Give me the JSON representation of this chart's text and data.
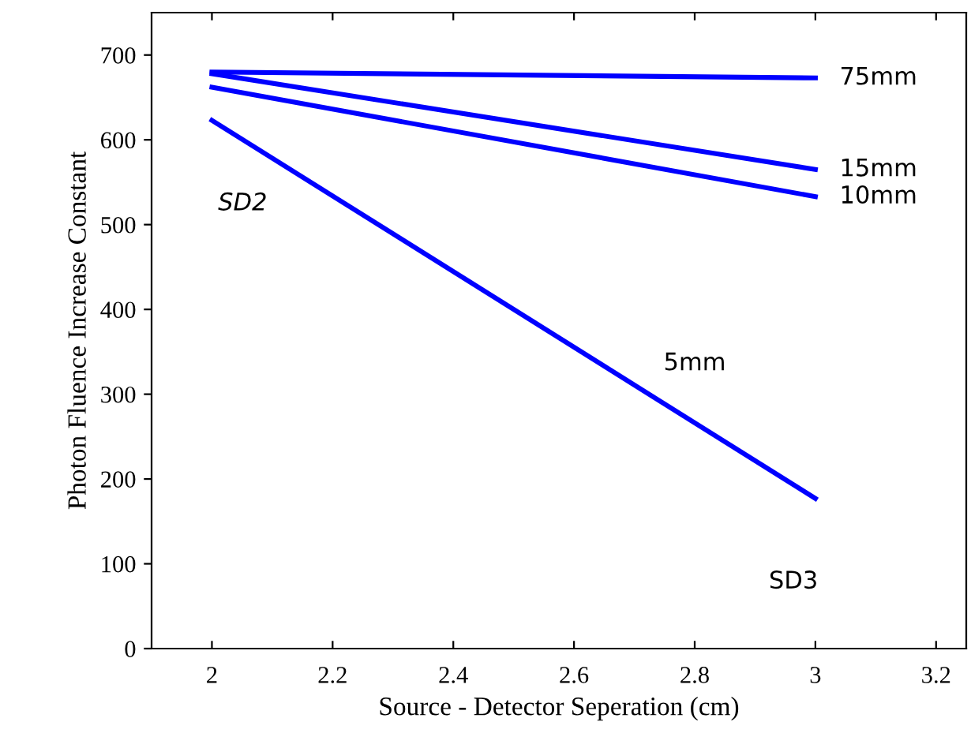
{
  "chart_data": {
    "type": "line",
    "xlabel": "Source - Detector Seperation (cm)",
    "ylabel": "Photon Fluence Increase Constant",
    "x": [
      2,
      3
    ],
    "series": [
      {
        "name": "75mm",
        "color": "#0000ff",
        "values": [
          680,
          673
        ]
      },
      {
        "name": "15mm",
        "color": "#0000ff",
        "values": [
          678,
          565
        ]
      },
      {
        "name": "10mm",
        "color": "#0000ff",
        "values": [
          662,
          533
        ]
      },
      {
        "name": "5mm",
        "color": "#0000ff",
        "values": [
          623,
          177
        ]
      }
    ],
    "annotations": [
      {
        "text": "SD2",
        "x": 2,
        "y": 623
      },
      {
        "text": "SD3",
        "x": 3,
        "y": 177
      }
    ],
    "xlim": [
      1.9,
      3.25
    ],
    "ylim": [
      0,
      750
    ],
    "xticks": [
      2,
      2.2,
      2.4,
      2.6,
      2.8,
      3,
      3.2
    ],
    "yticks": [
      0,
      100,
      200,
      300,
      400,
      500,
      600,
      700
    ],
    "grid": false,
    "legend": false,
    "marker": "none",
    "line_style": "solid"
  }
}
